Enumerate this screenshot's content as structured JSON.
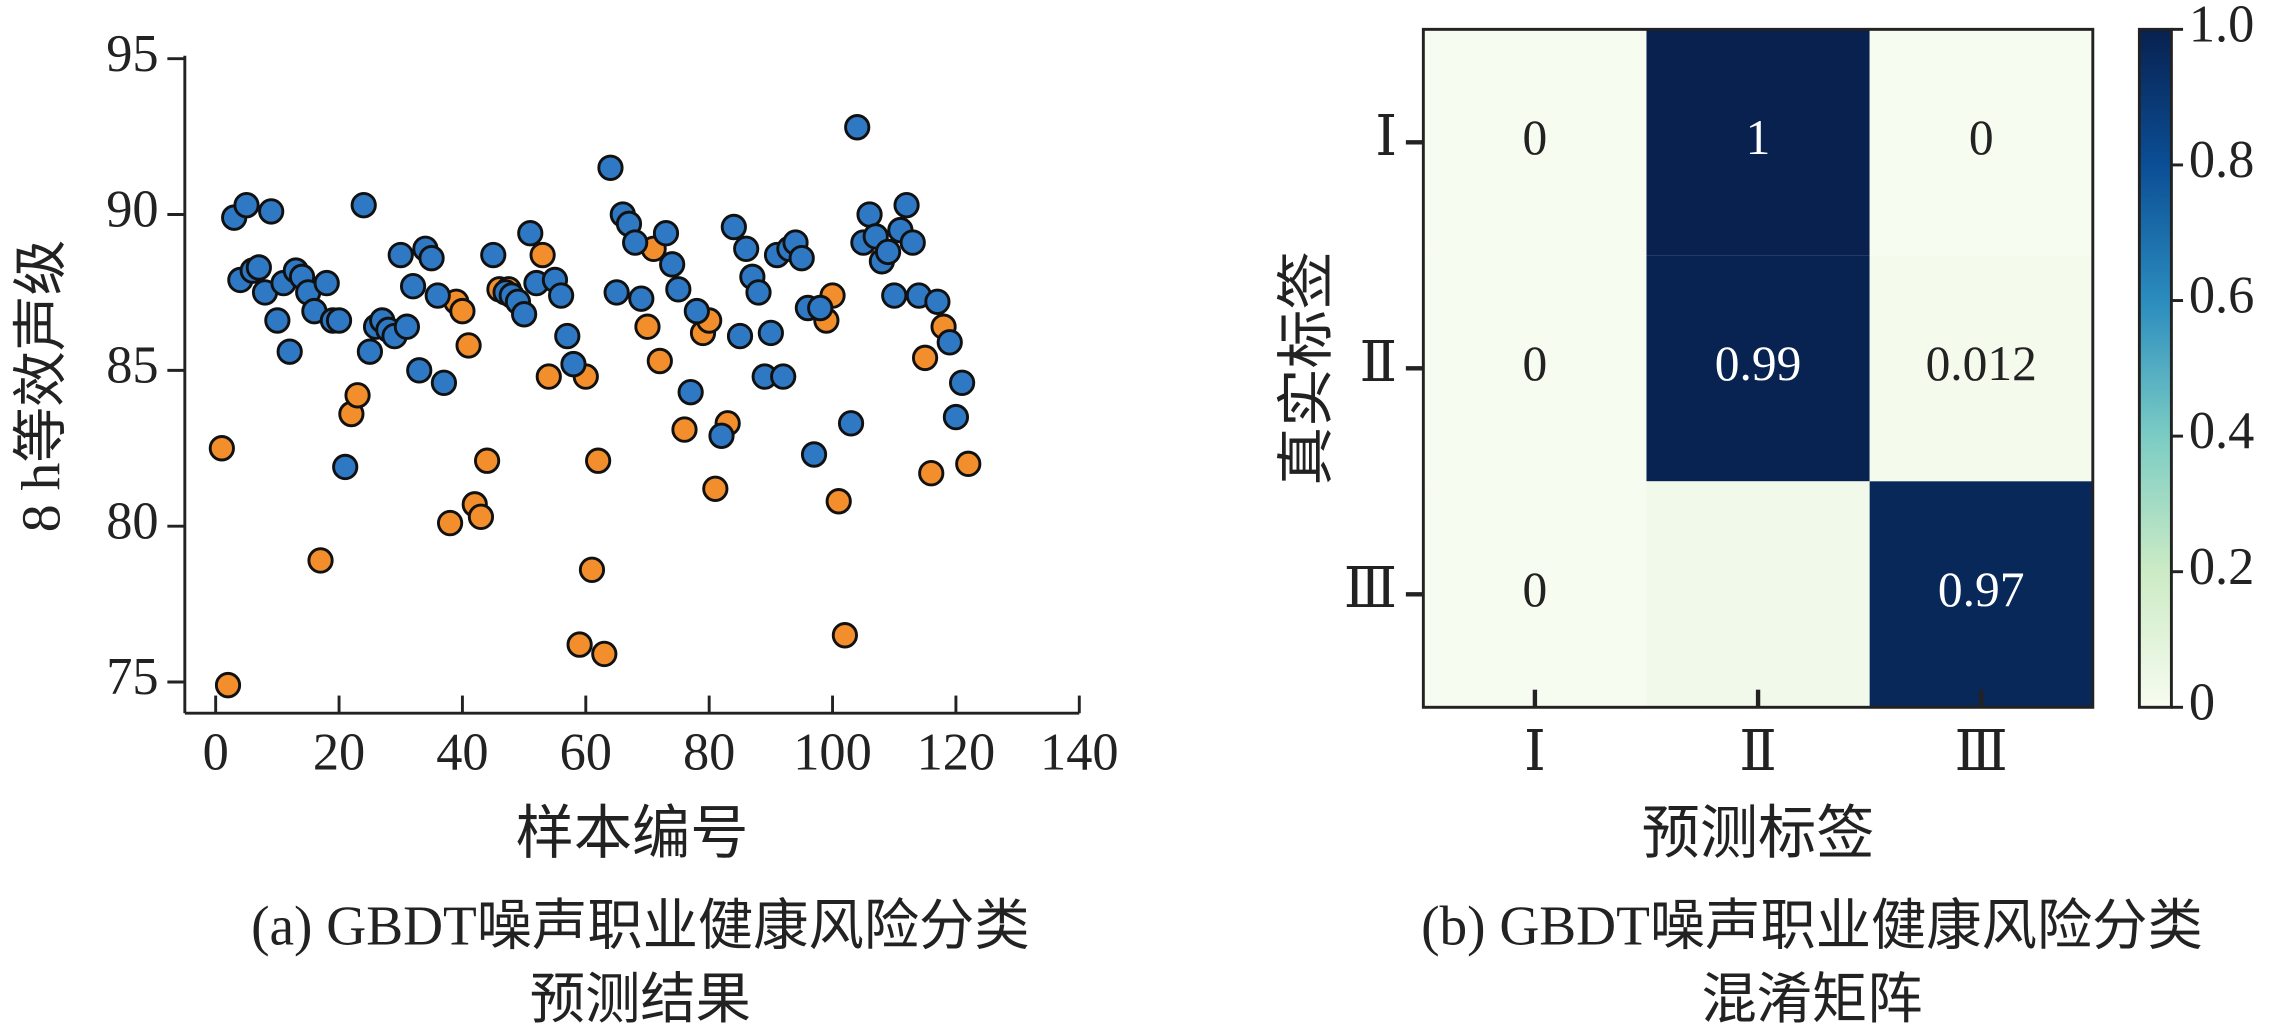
{
  "chart_data": [
    {
      "type": "scatter",
      "xlabel": "样本编号",
      "ylabel": "8 h等效声级",
      "caption": [
        "(a) GBDT噪声职业健康风险分类",
        "预测结果"
      ],
      "xlim": [
        -5,
        140
      ],
      "xticks": [
        0,
        20,
        40,
        60,
        80,
        100,
        120,
        140
      ],
      "ylim": [
        74,
        95
      ],
      "yticks": [
        75,
        80,
        85,
        90,
        95
      ],
      "series": [
        {
          "color": "#f28e2b",
          "x": [
            1,
            2,
            17,
            22,
            23,
            38,
            39,
            40,
            41,
            42,
            43,
            44,
            46,
            47.5,
            53,
            54,
            59,
            60,
            61,
            62,
            63,
            70,
            71,
            72,
            76,
            79,
            80,
            81,
            83,
            99,
            100,
            101,
            102,
            115,
            116,
            118,
            122
          ],
          "values": [
            82.5,
            74.9,
            78.9,
            83.6,
            84.2,
            80.1,
            87.2,
            86.9,
            85.8,
            80.7,
            80.3,
            82.1,
            87.6,
            87.6,
            88.7,
            84.8,
            76.2,
            84.8,
            78.6,
            82.1,
            75.9,
            86.4,
            88.9,
            85.3,
            83.1,
            86.2,
            86.6,
            81.2,
            83.3,
            86.6,
            87.4,
            80.8,
            76.5,
            85.4,
            81.7,
            86.4,
            82.0
          ]
        },
        {
          "color": "#2f78c4",
          "x": [
            3,
            4,
            5,
            6,
            7,
            8,
            9,
            10,
            11,
            12,
            13,
            14,
            15,
            16,
            18,
            19,
            20,
            21,
            24,
            25,
            26,
            27,
            28,
            29,
            30,
            31,
            32,
            33,
            34,
            35,
            36,
            37,
            45,
            47,
            48,
            49,
            50,
            51,
            52,
            55,
            56,
            57,
            58,
            64,
            65,
            66,
            67,
            68,
            69,
            73,
            74,
            75,
            77,
            78,
            82,
            84,
            85,
            86,
            87,
            88,
            89,
            90,
            91,
            92,
            93,
            94,
            95,
            96,
            97,
            98,
            103,
            104,
            105,
            106,
            107,
            108,
            109,
            110,
            111,
            112,
            113,
            114,
            117,
            119,
            120,
            121
          ],
          "values": [
            89.9,
            87.9,
            90.3,
            88.2,
            88.3,
            87.5,
            90.1,
            86.6,
            87.8,
            85.6,
            88.2,
            88.0,
            87.5,
            86.9,
            87.8,
            86.6,
            86.6,
            81.9,
            90.3,
            85.6,
            86.4,
            86.6,
            86.3,
            86.1,
            88.7,
            86.4,
            87.7,
            85.0,
            88.9,
            88.6,
            87.4,
            84.6,
            88.7,
            87.5,
            87.4,
            87.2,
            86.8,
            89.4,
            87.8,
            87.9,
            87.4,
            86.1,
            85.2,
            91.5,
            87.5,
            90.0,
            89.7,
            89.1,
            87.3,
            89.4,
            88.4,
            87.6,
            84.3,
            86.9,
            82.9,
            89.6,
            86.1,
            88.9,
            88.0,
            87.5,
            84.8,
            86.2,
            88.7,
            84.8,
            88.9,
            89.1,
            88.6,
            87.0,
            82.3,
            87.0,
            83.3,
            92.8,
            89.1,
            90.0,
            89.3,
            88.5,
            88.8,
            87.4,
            89.5,
            90.3,
            89.1,
            87.4,
            87.2,
            85.9,
            83.5,
            84.6
          ]
        }
      ]
    },
    {
      "type": "heatmap",
      "xlabel": "预测标签",
      "ylabel": "真实标签",
      "caption": [
        "(b) GBDT噪声职业健康风险分类",
        "混淆矩阵"
      ],
      "x_categories": [
        "Ⅰ",
        "Ⅱ",
        "Ⅲ"
      ],
      "y_categories": [
        "Ⅰ",
        "Ⅱ",
        "Ⅲ"
      ],
      "values": [
        [
          0,
          1,
          0
        ],
        [
          0,
          0.99,
          0.012
        ],
        [
          0,
          0.03,
          0.97
        ]
      ],
      "value_labels": [
        [
          "0",
          "1",
          "0"
        ],
        [
          "0",
          "0.99",
          "0.012"
        ],
        [
          "0",
          null,
          "0.97"
        ]
      ],
      "vlim": [
        0,
        1
      ],
      "colorbar_ticks": [
        0,
        0.2,
        0.4,
        0.6,
        0.8,
        {
          "value": 1,
          "label": "1.0"
        }
      ],
      "colormap": [
        "#f7fcf0",
        "#ccebc5",
        "#7bccc4",
        "#2b8cbe",
        "#0b4e95",
        "#08214f"
      ]
    }
  ]
}
